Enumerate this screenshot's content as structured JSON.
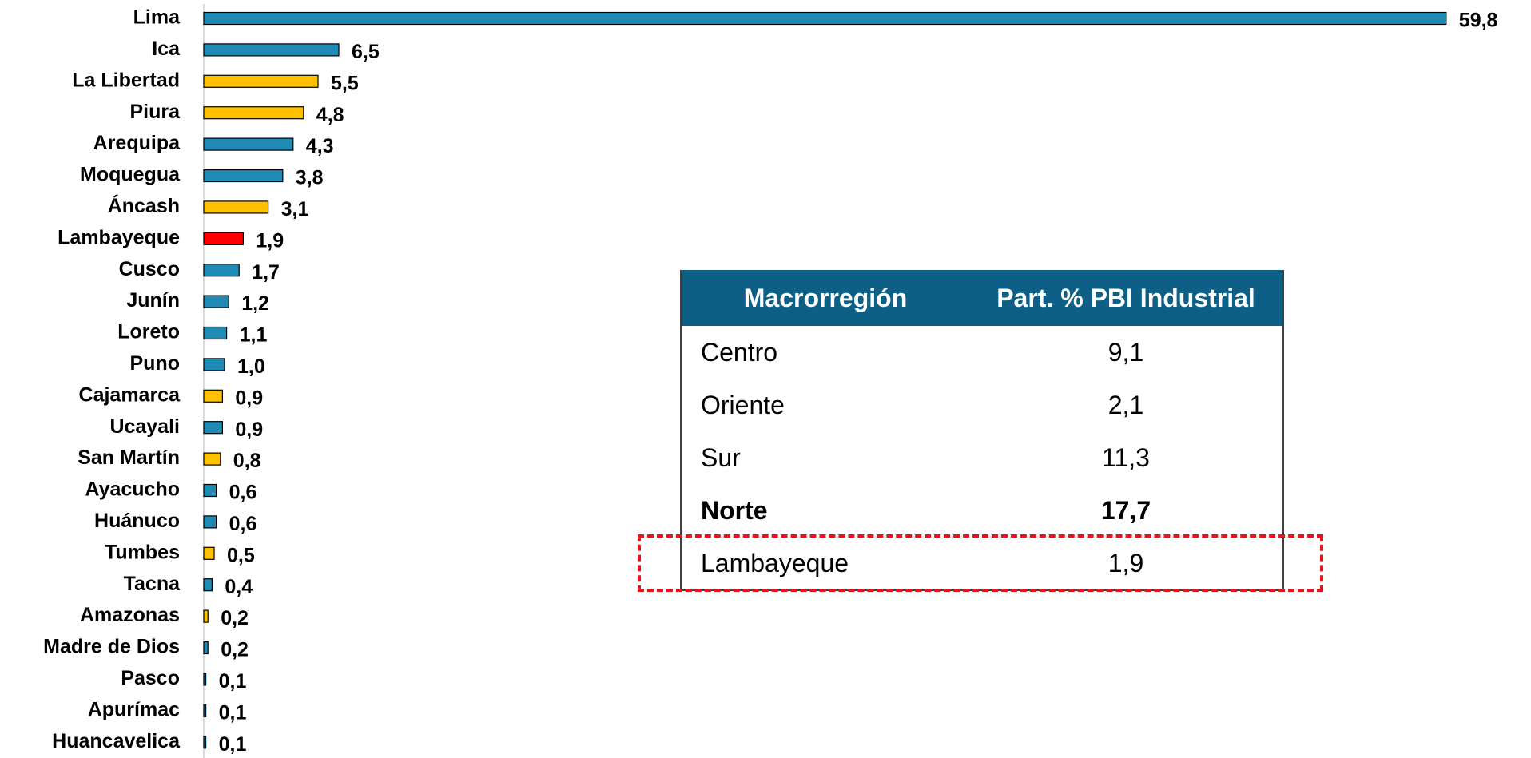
{
  "chart_data": {
    "type": "barh",
    "categories": [
      "Lima",
      "Ica",
      "La Libertad",
      "Piura",
      "Arequipa",
      "Moquegua",
      "Áncash",
      "Lambayeque",
      "Cusco",
      "Junín",
      "Loreto",
      "Puno",
      "Cajamarca",
      "Ucayali",
      "San Martín",
      "Ayacucho",
      "Huánuco",
      "Tumbes",
      "Tacna",
      "Amazonas",
      "Madre de Dios",
      "Pasco",
      "Apurímac",
      "Huancavelica"
    ],
    "values": [
      59.8,
      6.5,
      5.5,
      4.8,
      4.3,
      3.8,
      3.1,
      1.9,
      1.7,
      1.2,
      1.1,
      1.0,
      0.9,
      0.9,
      0.8,
      0.6,
      0.6,
      0.5,
      0.4,
      0.2,
      0.2,
      0.1,
      0.1,
      0.1
    ],
    "value_labels": [
      "59,8",
      "6,5",
      "5,5",
      "4,8",
      "4,3",
      "3,8",
      "3,1",
      "1,9",
      "1,7",
      "1,2",
      "1,1",
      "1,0",
      "0,9",
      "0,9",
      "0,8",
      "0,6",
      "0,6",
      "0,5",
      "0,4",
      "0,2",
      "0,2",
      "0,1",
      "0,1",
      "0,1"
    ],
    "colors": [
      "#1f8bb5",
      "#1f8bb5",
      "#ffc000",
      "#ffc000",
      "#1f8bb5",
      "#1f8bb5",
      "#ffc000",
      "#ff0000",
      "#1f8bb5",
      "#1f8bb5",
      "#1f8bb5",
      "#1f8bb5",
      "#ffc000",
      "#1f8bb5",
      "#ffc000",
      "#1f8bb5",
      "#1f8bb5",
      "#ffc000",
      "#1f8bb5",
      "#ffc000",
      "#1f8bb5",
      "#1f8bb5",
      "#1f8bb5",
      "#1f8bb5"
    ],
    "xlim": [
      0,
      60
    ]
  },
  "table": {
    "header": [
      "Macrorregión",
      "Part. % PBI Industrial"
    ],
    "rows": [
      [
        "Centro",
        "9,1"
      ],
      [
        "Oriente",
        "2,1"
      ],
      [
        "Sur",
        "11,3"
      ],
      [
        "Norte",
        "17,7"
      ],
      [
        "Lambayeque",
        "1,9"
      ]
    ]
  }
}
